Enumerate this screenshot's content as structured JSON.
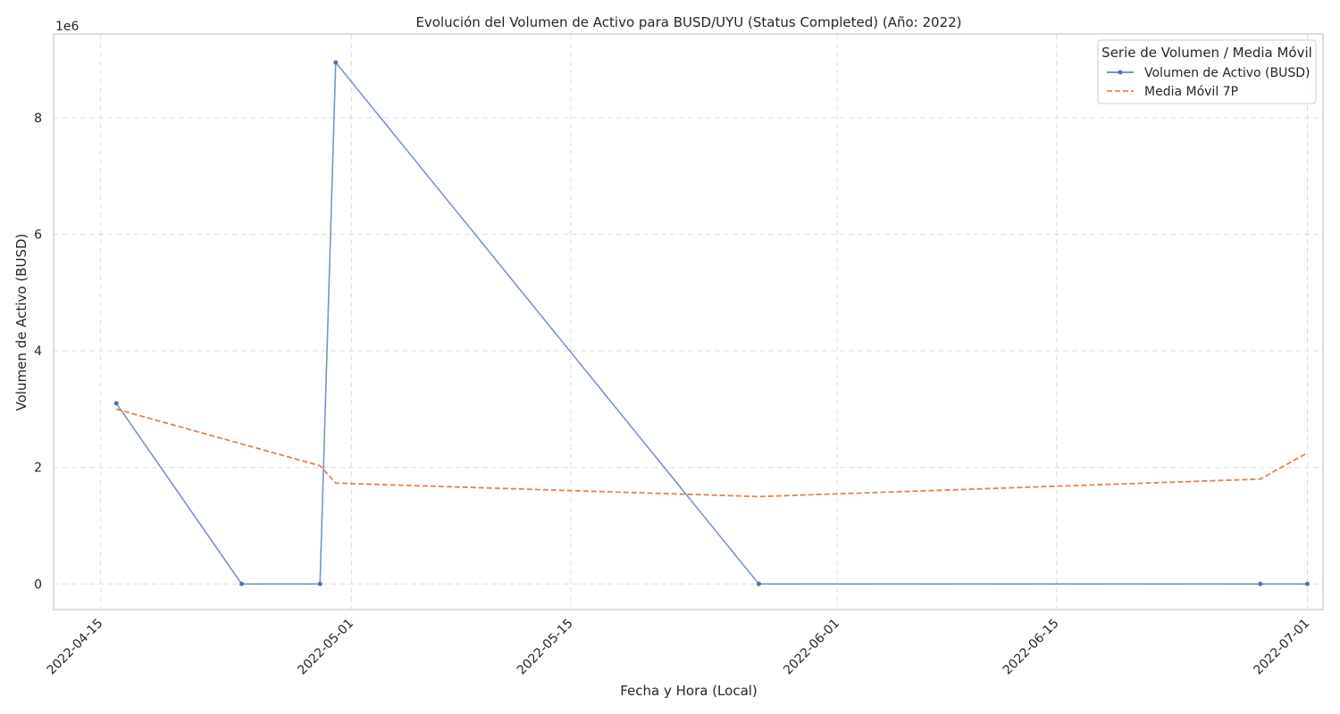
{
  "chart_data": {
    "type": "line",
    "title": "Evolución del Volumen de Activo para BUSD/UYU (Status Completed) (Año: 2022)",
    "xlabel": "Fecha y Hora (Local)",
    "ylabel": "Volumen de Activo (BUSD)",
    "y_offset_label": "1e6",
    "y_multiplier": 1000000,
    "xlim": [
      "2022-04-12",
      "2022-07-02"
    ],
    "ylim": [
      -0.44,
      9.44
    ],
    "x_ticks": [
      "2022-04-15",
      "2022-05-01",
      "2022-05-15",
      "2022-06-01",
      "2022-06-15",
      "2022-07-01"
    ],
    "y_ticks": [
      0,
      2,
      4,
      6,
      8
    ],
    "grid": true,
    "legend": {
      "title": "Serie de Volumen / Media Móvil",
      "placement": "top-right"
    },
    "series": [
      {
        "name": "Volumen de Activo (BUSD)",
        "color": "#4c72b0",
        "style": "solid",
        "markers": true,
        "points": [
          {
            "x": "2022-04-16",
            "y": 3.1
          },
          {
            "x": "2022-04-24",
            "y": 0.0
          },
          {
            "x": "2022-04-29",
            "y": 0.0
          },
          {
            "x": "2022-04-30",
            "y": 8.95
          },
          {
            "x": "2022-05-27",
            "y": 0.0
          },
          {
            "x": "2022-06-28",
            "y": 0.0
          },
          {
            "x": "2022-07-01",
            "y": 0.0
          }
        ]
      },
      {
        "name": "Media Móvil 7P",
        "color": "#dd8452",
        "style": "dashed",
        "markers": false,
        "points": [
          {
            "x": "2022-04-16",
            "y": 3.0
          },
          {
            "x": "2022-04-29",
            "y": 2.03
          },
          {
            "x": "2022-04-30",
            "y": 1.73
          },
          {
            "x": "2022-05-27",
            "y": 1.5
          },
          {
            "x": "2022-06-28",
            "y": 1.8
          },
          {
            "x": "2022-07-01",
            "y": 2.25
          }
        ]
      }
    ]
  }
}
